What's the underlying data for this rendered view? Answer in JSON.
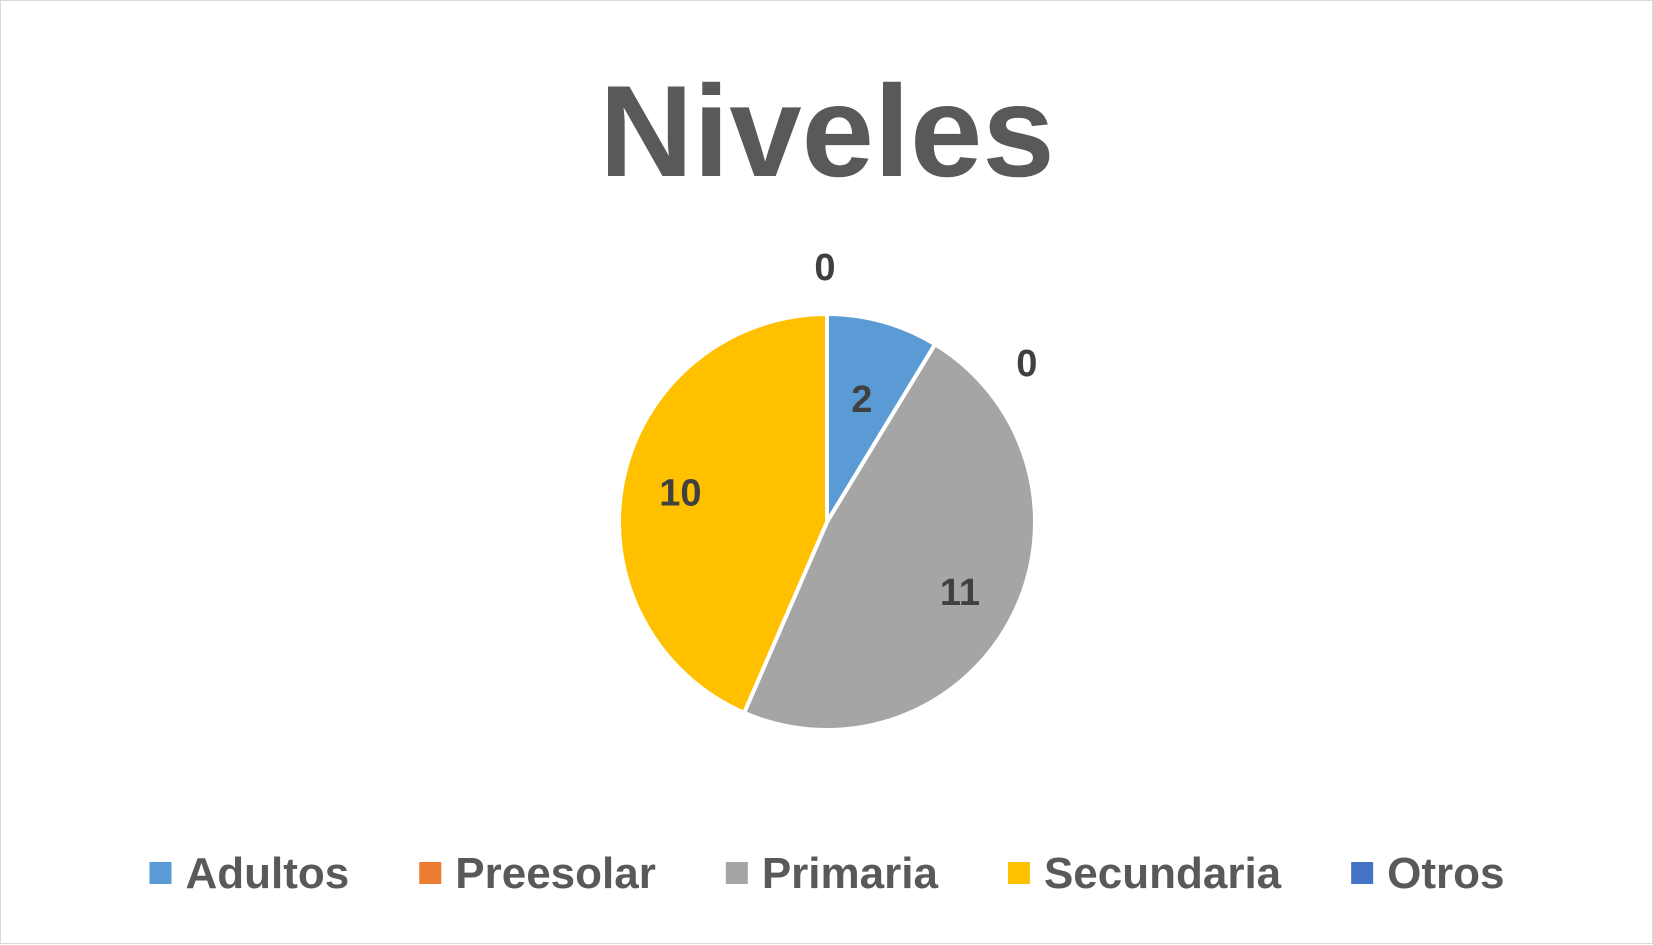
{
  "chart_data": {
    "type": "pie",
    "title": "Niveles",
    "categories": [
      "Adultos",
      "Preesolar",
      "Primaria",
      "Secundaria",
      "Otros"
    ],
    "values": [
      2,
      0,
      11,
      10,
      0
    ],
    "colors": [
      "#5b9bd5",
      "#ed7d31",
      "#a5a5a5",
      "#ffc000",
      "#4472c4"
    ],
    "data_labels": [
      "2",
      "0",
      "11",
      "10",
      "0"
    ],
    "legend_position": "bottom",
    "slice_border_color": "#ffffff",
    "start_angle": "12 o'clock, clockwise"
  }
}
